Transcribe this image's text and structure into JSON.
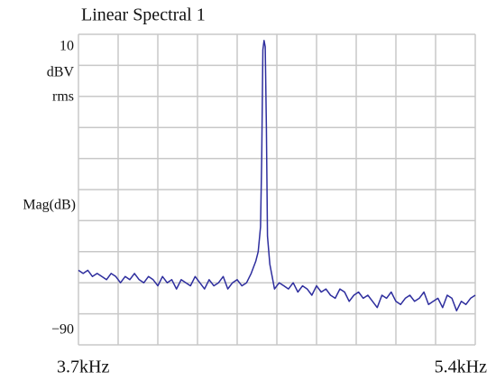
{
  "chart_data": {
    "type": "line",
    "title": "Linear Spectral 1",
    "y_unit": [
      "dBV",
      "rms"
    ],
    "y_label": "Mag(dB)",
    "xlim": [
      3700,
      5400
    ],
    "xticks": [
      {
        "value": 3700,
        "label": "3.7kHz"
      },
      {
        "value": 5400,
        "label": "5.4kHz"
      }
    ],
    "ylim": [
      -90,
      10
    ],
    "yticks": [
      10,
      {
        "value": -90,
        "label": "−90"
      }
    ],
    "grid": {
      "x_divisions": 10,
      "y_divisions": 10,
      "color": "#c8c8c8"
    },
    "x": [
      3700,
      3720,
      3740,
      3760,
      3780,
      3800,
      3820,
      3840,
      3860,
      3880,
      3900,
      3920,
      3940,
      3960,
      3980,
      4000,
      4020,
      4040,
      4060,
      4080,
      4100,
      4120,
      4140,
      4160,
      4180,
      4200,
      4220,
      4240,
      4260,
      4280,
      4300,
      4320,
      4340,
      4360,
      4380,
      4400,
      4420,
      4440,
      4450,
      4460,
      4470,
      4480,
      4485,
      4490,
      4495,
      4500,
      4505,
      4510,
      4520,
      4530,
      4540,
      4560,
      4580,
      4600,
      4620,
      4640,
      4660,
      4680,
      4700,
      4720,
      4740,
      4760,
      4780,
      4800,
      4820,
      4840,
      4860,
      4880,
      4900,
      4920,
      4940,
      4960,
      4980,
      5000,
      5020,
      5040,
      5060,
      5080,
      5100,
      5120,
      5140,
      5160,
      5180,
      5200,
      5220,
      5240,
      5260,
      5280,
      5300,
      5320,
      5340,
      5360,
      5380,
      5400
    ],
    "series": [
      {
        "color": "#2e2e9e",
        "values": [
          -66,
          -67,
          -66,
          -68,
          -67,
          -68,
          -69,
          -67,
          -68,
          -70,
          -68,
          -69,
          -67,
          -69,
          -70,
          -68,
          -69,
          -71,
          -68,
          -70,
          -69,
          -72,
          -69,
          -70,
          -71,
          -68,
          -70,
          -72,
          -69,
          -71,
          -70,
          -68,
          -72,
          -70,
          -69,
          -71,
          -70,
          -67,
          -65,
          -63,
          -60,
          -52,
          -30,
          5,
          8,
          6,
          -20,
          -55,
          -64,
          -68,
          -72,
          -70,
          -71,
          -72,
          -70,
          -73,
          -71,
          -72,
          -74,
          -71,
          -73,
          -72,
          -74,
          -75,
          -72,
          -73,
          -76,
          -74,
          -73,
          -75,
          -74,
          -76,
          -78,
          -74,
          -75,
          -73,
          -76,
          -77,
          -75,
          -74,
          -76,
          -75,
          -73,
          -77,
          -76,
          -75,
          -78,
          -74,
          -75,
          -79,
          -76,
          -77,
          -75,
          -74
        ]
      }
    ]
  }
}
